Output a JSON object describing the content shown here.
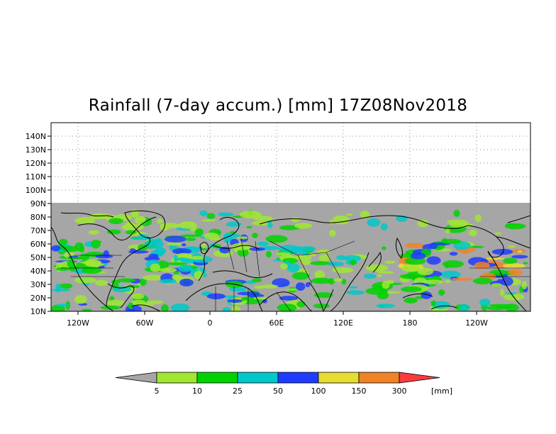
{
  "title": "Rainfall (7-day accum.) [mm] 17Z08Nov2018",
  "map": {
    "projection": "cylindrical equidistant",
    "lon_ticks": [
      "120W",
      "60W",
      "0",
      "60E",
      "120E",
      "180",
      "120W"
    ],
    "lat_ticks": [
      "10N",
      "20N",
      "30N",
      "40N",
      "50N",
      "60N",
      "70N",
      "80N",
      "90N",
      "100N",
      "110N",
      "120N",
      "130N",
      "140N"
    ],
    "no_data_color": "#a6a6a6",
    "gridlines": "dotted"
  },
  "colorbar": {
    "thresholds": [
      "5",
      "10",
      "25",
      "50",
      "100",
      "150",
      "300"
    ],
    "unit": "[mm]",
    "colors": [
      "#a6a6a6",
      "#a0e632",
      "#00d200",
      "#00c8c8",
      "#1e3cff",
      "#e6dc32",
      "#f08228",
      "#fa3c3c"
    ]
  }
}
